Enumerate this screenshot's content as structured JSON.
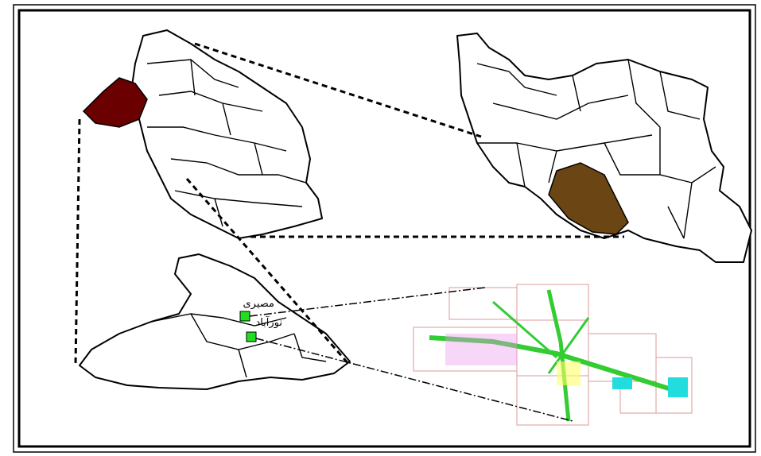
{
  "map": {
    "labels": [
      {
        "text": "مصیری"
      },
      {
        "text": "نورآباد"
      }
    ]
  }
}
